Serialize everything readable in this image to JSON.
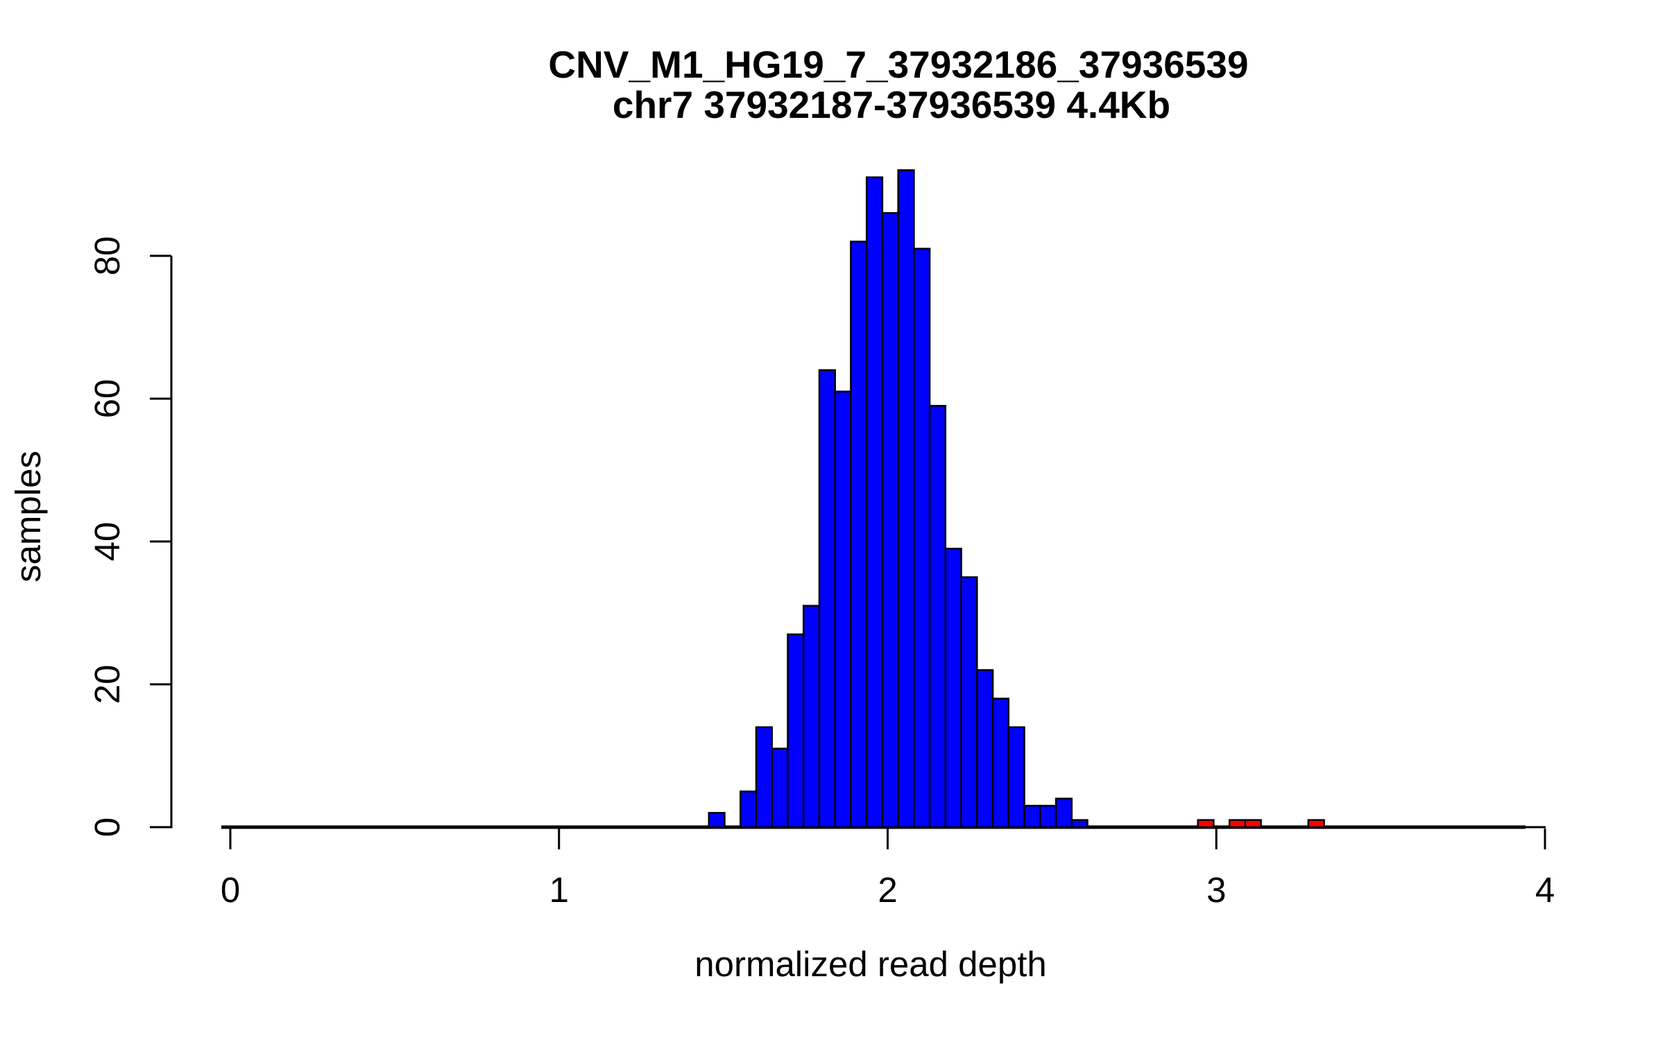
{
  "chart_data": {
    "type": "bar",
    "subtype": "histogram",
    "title": "CNV_M1_HG19_7_37932186_37936539",
    "subtitle": "chr7 37932187-37936539 4.4Kb",
    "xlabel": "normalized read depth",
    "ylabel": "samples",
    "xlim": [
      0,
      4
    ],
    "ylim": [
      0,
      92
    ],
    "x_ticks": [
      0,
      1,
      2,
      3,
      4
    ],
    "y_ticks": [
      0,
      20,
      40,
      60,
      80
    ],
    "grid": false,
    "legend_position": "none",
    "background_color": "#ffffff",
    "axis_color": "#000000",
    "bar_border_color": "#000000",
    "bin_width": 0.048,
    "series": [
      {
        "name": "blue_bars",
        "color": "#0000ff",
        "bin_left_edges": [
          1.456,
          1.504,
          1.552,
          1.6,
          1.648,
          1.696,
          1.744,
          1.792,
          1.84,
          1.888,
          1.936,
          1.984,
          2.032,
          2.08,
          2.128,
          2.176,
          2.224,
          2.272,
          2.32,
          2.368,
          2.416,
          2.464,
          2.512,
          2.56
        ],
        "counts": [
          2,
          0,
          5,
          14,
          11,
          27,
          31,
          64,
          61,
          82,
          91,
          86,
          92,
          81,
          59,
          39,
          35,
          22,
          18,
          14,
          3,
          3,
          4,
          1
        ]
      },
      {
        "name": "red_bars",
        "color": "#ff0000",
        "bin_left_edges": [
          2.944,
          3.04,
          3.088,
          3.28
        ],
        "counts": [
          1,
          1,
          1,
          1
        ]
      }
    ]
  }
}
